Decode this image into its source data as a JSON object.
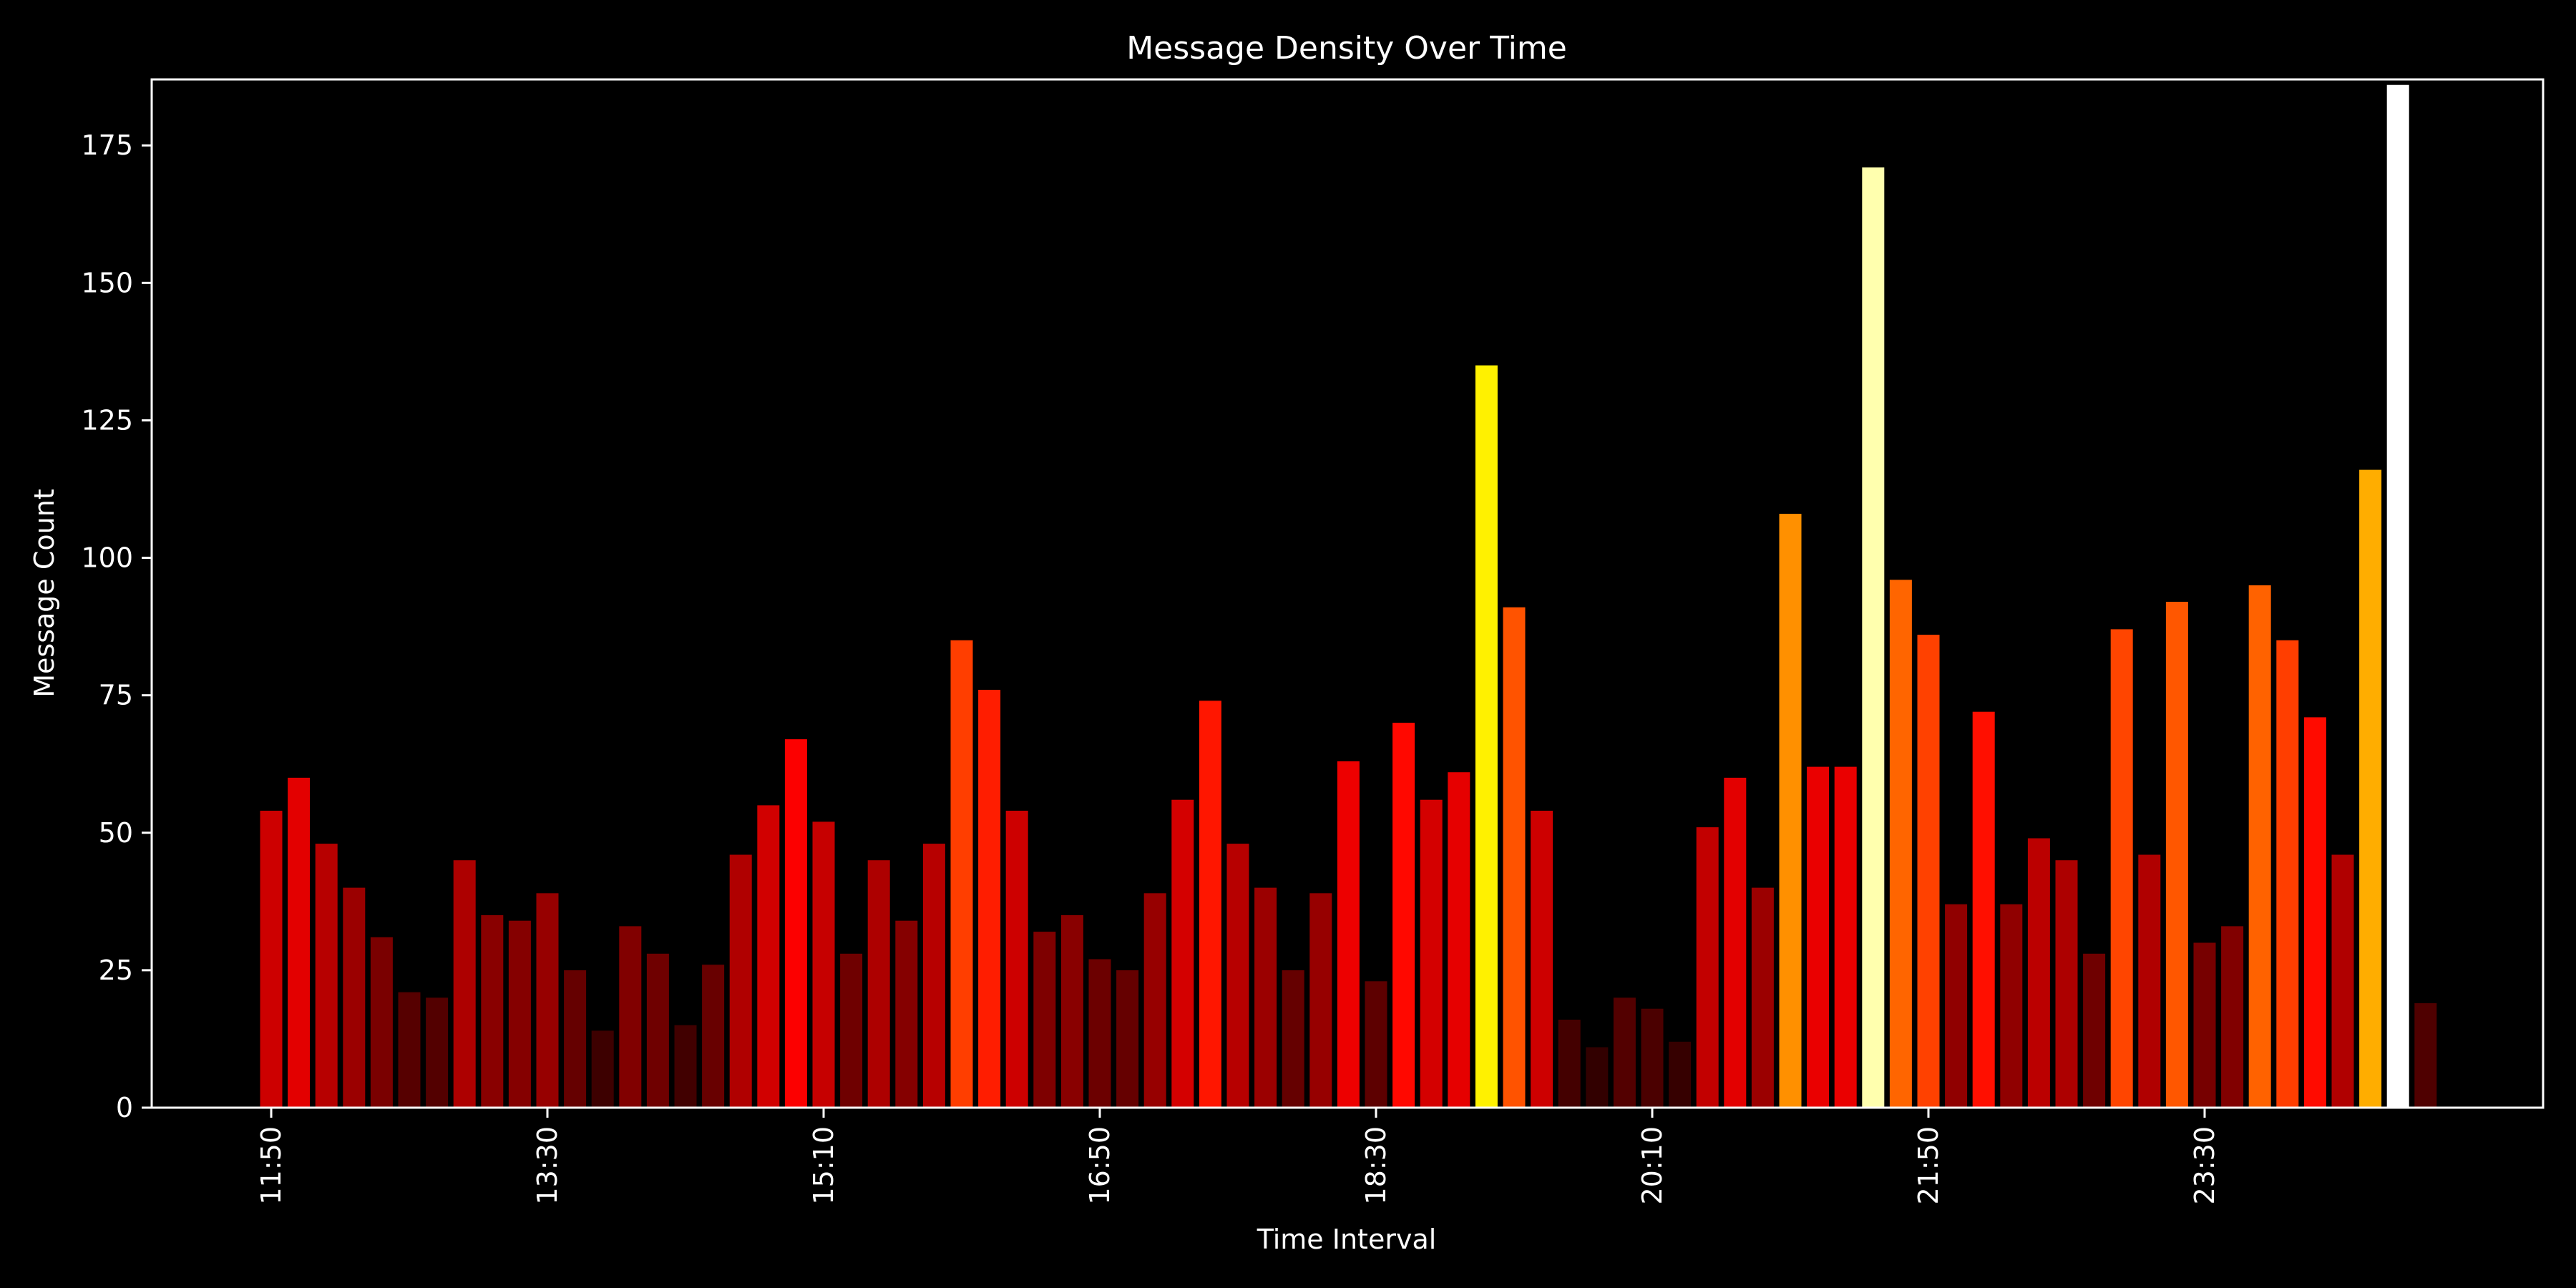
{
  "chart_data": {
    "type": "bar",
    "title": "Message Density Over Time",
    "xlabel": "Time Interval",
    "ylabel": "Message Count",
    "ylim": [
      0,
      187
    ],
    "yticks": [
      0,
      25,
      50,
      75,
      100,
      125,
      150,
      175
    ],
    "x_tick_labels": [
      "11:50",
      "13:30",
      "15:10",
      "16:50",
      "18:30",
      "20:10",
      "21:50",
      "23:30"
    ],
    "x_tick_every": 10,
    "values": [
      54,
      60,
      48,
      40,
      31,
      21,
      20,
      45,
      35,
      34,
      39,
      25,
      14,
      33,
      28,
      15,
      26,
      46,
      55,
      67,
      52,
      28,
      45,
      34,
      48,
      85,
      76,
      54,
      32,
      35,
      27,
      25,
      39,
      56,
      74,
      48,
      40,
      25,
      39,
      63,
      23,
      70,
      56,
      61,
      135,
      91,
      54,
      16,
      11,
      20,
      18,
      12,
      51,
      60,
      40,
      108,
      62,
      62,
      171,
      96,
      86,
      37,
      72,
      37,
      49,
      45,
      28,
      87,
      46,
      92,
      30,
      33,
      95,
      85,
      71,
      46,
      116,
      186,
      19
    ],
    "colormap": "hot",
    "grid": false,
    "legend": false,
    "colors": {
      "background": "#000000",
      "axes": "#ffffff",
      "text": "#ffffff"
    }
  }
}
